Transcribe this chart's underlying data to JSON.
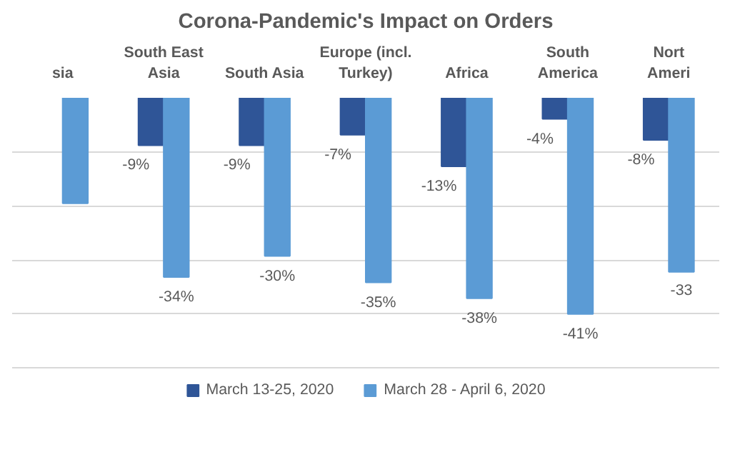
{
  "chart_data": {
    "type": "bar",
    "title": "Corona-Pandemic's Impact on Orders",
    "categories": [
      "sia",
      "South East\nAsia",
      "South Asia",
      "Europe (incl.\nTurkey)",
      "Africa",
      "South\nAmerica",
      "Nort\nAmeri"
    ],
    "series": [
      {
        "name": "March 13-25, 2020",
        "color": "#2f5597",
        "values": [
          null,
          -9,
          -9,
          -7,
          -13,
          -4,
          -8
        ],
        "value_labels": [
          null,
          "-9%",
          "-9%",
          "-7%",
          "-13%",
          "-4%",
          "-8%"
        ]
      },
      {
        "name": "March 28 - April 6, 2020",
        "color": "#5b9bd5",
        "values": [
          -20,
          -34,
          -30,
          -35,
          -38,
          -41,
          -33
        ],
        "value_labels": [
          null,
          "-34%",
          "-30%",
          "-35%",
          "-38%",
          "-41%",
          "-33"
        ]
      }
    ],
    "grid": "y",
    "legend": "bottom",
    "tick_labels": "x"
  }
}
